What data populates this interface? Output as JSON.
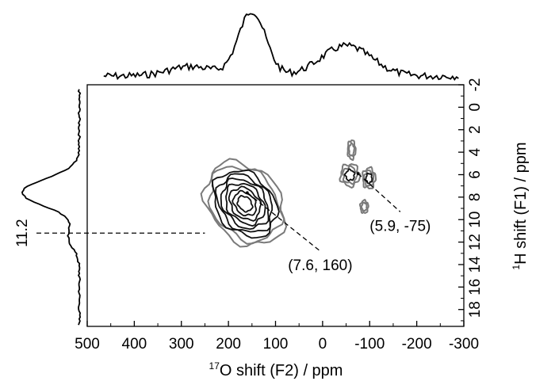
{
  "chart_data": {
    "type": "contour",
    "x_axis": {
      "label_sup": "17",
      "label": "O shift (F2) / ppm",
      "range": [
        500,
        -300
      ],
      "reversed": true,
      "ticks": [
        500,
        400,
        300,
        200,
        100,
        0,
        -100,
        -200,
        -300
      ],
      "tick_labels": [
        "500",
        "400",
        "300",
        "200",
        "100",
        "0",
        "-100",
        "-200",
        "-300"
      ]
    },
    "y_axis": {
      "label_sup": "1",
      "label": "H shift (F1) / ppm",
      "range": [
        -2,
        19.5
      ],
      "reversed": true,
      "position": "right",
      "ticks": [
        -2,
        0,
        2,
        4,
        6,
        8,
        10,
        12,
        14,
        16,
        18
      ],
      "tick_labels": [
        "-2",
        "0",
        "2",
        "4",
        "6",
        "8",
        "10",
        "12",
        "14",
        "16",
        "18"
      ]
    },
    "peaks": [
      {
        "f1": 7.6,
        "f2": 160,
        "label": "(7.6, 160)",
        "label_f1": 14.5,
        "label_f2": 5
      },
      {
        "f1": 5.9,
        "f2": -75,
        "label": "(5.9, -75)",
        "label_f1": 11.0,
        "label_f2": -165
      }
    ],
    "projection_marker": {
      "value": "11.2",
      "f1": 11.2
    },
    "grid": false,
    "projections": [
      "top: 17O projection",
      "left: 1H projection"
    ],
    "colors": {
      "contour_dark": "#111111",
      "contour_light": "#7a7a7a",
      "axis": "#000000"
    }
  }
}
